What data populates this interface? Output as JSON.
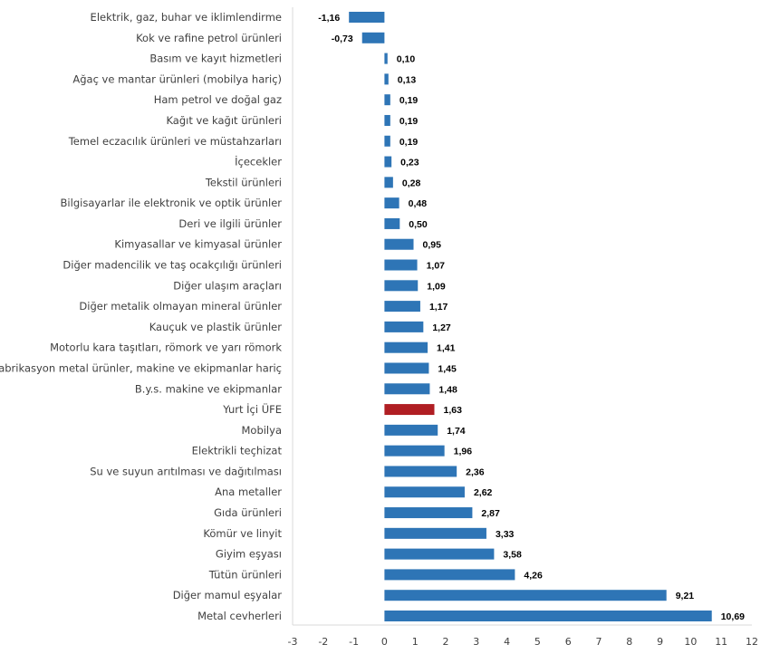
{
  "chart_data": {
    "type": "bar",
    "orientation": "horizontal",
    "title": "",
    "xlabel": "",
    "ylabel": "",
    "xlim": [
      -3,
      12
    ],
    "xticks": [
      "-3",
      "-2",
      "-1",
      "0",
      "1",
      "2",
      "3",
      "4",
      "5",
      "6",
      "7",
      "8",
      "9",
      "10",
      "11",
      "12"
    ],
    "grid": false,
    "legend": "none",
    "colors": {
      "default": "#2e75b6",
      "highlight": "#b01e23"
    },
    "categories": [
      "Elektrik, gaz, buhar ve iklimlendirme",
      "Kok ve rafine petrol ürünleri",
      "Basım ve kayıt hizmetleri",
      "Ağaç ve mantar ürünleri (mobilya hariç)",
      "Ham petrol ve doğal gaz",
      "Kağıt ve kağıt ürünleri",
      "Temel eczacılık ürünleri ve müstahzarları",
      "İçecekler",
      "Tekstil ürünleri",
      "Bilgisayarlar ile elektronik ve optik ürünler",
      "Deri ve ilgili ürünler",
      "Kimyasallar ve kimyasal ürünler",
      "Diğer madencilik ve taş ocakçılığı ürünleri",
      "Diğer ulaşım araçları",
      "Diğer metalik olmayan mineral ürünler",
      "Kauçuk ve plastik ürünler",
      "Motorlu kara taşıtları, römork ve yarı römork",
      "Fabrikasyon metal ürünler, makine ve ekipmanlar hariç",
      "B.y.s. makine ve ekipmanlar",
      "Yurt İçi ÜFE",
      "Mobilya",
      "Elektrikli teçhizat",
      "Su ve suyun arıtılması ve dağıtılması",
      "Ana metaller",
      "Gıda ürünleri",
      "Kömür ve linyit",
      "Giyim eşyası",
      "Tütün ürünleri",
      "Diğer mamul eşyalar",
      "Metal cevherleri"
    ],
    "values": [
      -1.16,
      -0.73,
      0.1,
      0.13,
      0.19,
      0.19,
      0.19,
      0.23,
      0.28,
      0.48,
      0.5,
      0.95,
      1.07,
      1.09,
      1.17,
      1.27,
      1.41,
      1.45,
      1.48,
      1.63,
      1.74,
      1.96,
      2.36,
      2.62,
      2.87,
      3.33,
      3.58,
      4.26,
      9.21,
      10.69
    ],
    "data_labels": [
      "-1,16",
      "-0,73",
      "0,10",
      "0,13",
      "0,19",
      "0,19",
      "0,19",
      "0,23",
      "0,28",
      "0,48",
      "0,50",
      "0,95",
      "1,07",
      "1,09",
      "1,17",
      "1,27",
      "1,41",
      "1,45",
      "1,48",
      "1,63",
      "1,74",
      "1,96",
      "2,36",
      "2,62",
      "2,87",
      "3,33",
      "3,58",
      "4,26",
      "9,21",
      "10,69"
    ],
    "highlighted_category": "Yurt İçi ÜFE"
  }
}
